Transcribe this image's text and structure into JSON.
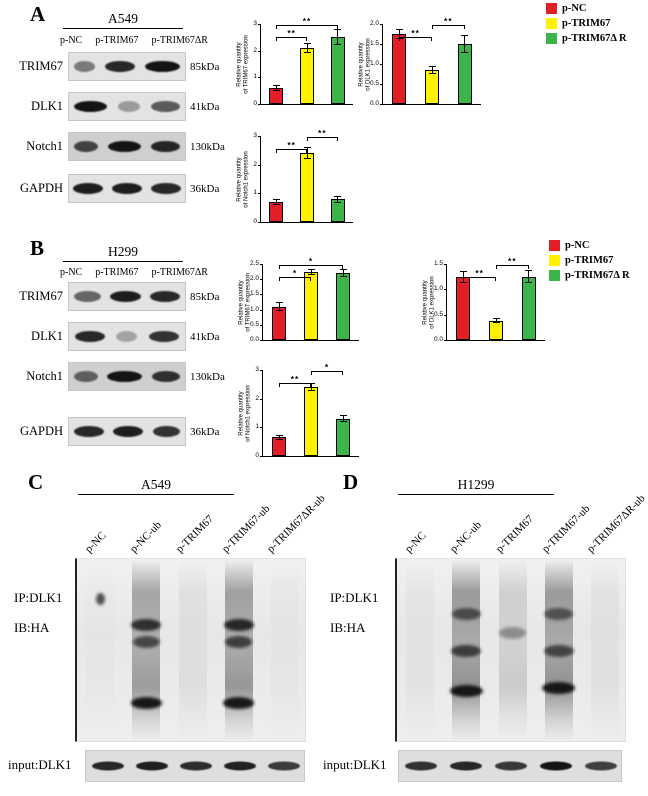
{
  "panels": {
    "A": {
      "label": "A",
      "cell_line": "A549",
      "lanes": [
        "p-NC",
        "p-TRIM67",
        "p-TRIM67ΔR"
      ],
      "rows": [
        {
          "protein": "TRIM67",
          "mw": "85kDa",
          "bands": [
            0.5,
            0.9,
            1.0
          ],
          "widths": [
            0.7,
            1.0,
            1.15
          ]
        },
        {
          "protein": "DLK1",
          "mw": "41kDa",
          "bands": [
            1.0,
            0.35,
            0.65
          ],
          "widths": [
            1.1,
            0.75,
            0.95
          ]
        },
        {
          "protein": "Notch1",
          "mw": "130kDa",
          "bands": [
            0.75,
            1.0,
            0.9
          ],
          "widths": [
            0.8,
            1.1,
            0.95
          ],
          "noisy": true
        },
        {
          "protein": "GAPDH",
          "mw": "36kDa",
          "bands": [
            0.95,
            0.95,
            0.9
          ],
          "widths": [
            1.0,
            1.0,
            1.0
          ]
        }
      ]
    },
    "B": {
      "label": "B",
      "cell_line": "H299",
      "lanes": [
        "p-NC",
        "p-TRIM67",
        "p-TRIM67ΔR"
      ],
      "rows": [
        {
          "protein": "TRIM67",
          "mw": "85kDa",
          "bands": [
            0.6,
            0.95,
            0.9
          ],
          "widths": [
            0.9,
            1.05,
            1.0
          ]
        },
        {
          "protein": "DLK1",
          "mw": "41kDa",
          "bands": [
            0.9,
            0.3,
            0.85
          ],
          "widths": [
            1.0,
            0.7,
            1.0
          ]
        },
        {
          "protein": "Notch1",
          "mw": "130kDa",
          "bands": [
            0.6,
            1.0,
            0.85
          ],
          "widths": [
            0.8,
            1.15,
            0.95
          ],
          "noisy": true
        },
        {
          "protein": "GAPDH",
          "mw": "36kDa",
          "bands": [
            0.9,
            0.95,
            0.85
          ],
          "widths": [
            1.0,
            1.0,
            0.9
          ]
        }
      ]
    },
    "C": {
      "label": "C",
      "cell_line": "A549",
      "ip_label": "IP:DLK1",
      "ib_label": "IB:HA",
      "input_label": "input:DLK1",
      "lanes": [
        "p-NC",
        "p-NC-ub",
        "p-TRIM67",
        "p-TRIM67-ub",
        "p-TRIM67ΔR-ub"
      ],
      "smears": [
        0.03,
        0.75,
        0.12,
        0.8,
        0.05
      ],
      "blobs": [
        [
          [
            0.22,
            0.7,
            0.3
          ]
        ],
        [
          [
            0.36,
            0.8,
            1.0
          ],
          [
            0.45,
            0.65,
            0.9
          ],
          [
            0.78,
            0.95,
            1.05
          ]
        ],
        [],
        [
          [
            0.36,
            0.85,
            1.0
          ],
          [
            0.45,
            0.7,
            0.9
          ],
          [
            0.78,
            0.95,
            1.05
          ]
        ],
        []
      ],
      "input_bands": [
        0.9,
        0.95,
        0.88,
        0.92,
        0.8
      ]
    },
    "D": {
      "label": "D",
      "cell_line": "H1299",
      "ip_label": "IP:DLK1",
      "ib_label": "IB:HA",
      "input_label": "input:DLK1",
      "lanes": [
        "p-NC",
        "p-NC-ub",
        "p-TRIM67",
        "p-TRIM67-ub",
        "p-TRIM67ΔR-ub"
      ],
      "smears": [
        0.08,
        0.85,
        0.3,
        0.85,
        0.1
      ],
      "blobs": [
        [],
        [
          [
            0.3,
            0.6,
            0.95
          ],
          [
            0.5,
            0.7,
            1.0
          ],
          [
            0.72,
            0.95,
            1.1
          ]
        ],
        [
          [
            0.4,
            0.35,
            0.9
          ]
        ],
        [
          [
            0.3,
            0.55,
            0.95
          ],
          [
            0.5,
            0.65,
            1.0
          ],
          [
            0.7,
            0.95,
            1.1
          ]
        ],
        []
      ],
      "input_bands": [
        0.85,
        0.9,
        0.82,
        1.0,
        0.78
      ]
    }
  },
  "legend": {
    "items": [
      {
        "label": "p-NC",
        "color": "#E21E26"
      },
      {
        "label": "p-TRIM67",
        "color": "#FFF100"
      },
      {
        "label": "p-TRIM67Δ R",
        "color": "#3BB54A"
      }
    ]
  },
  "chart_data": [
    {
      "id": "A-TRIM67",
      "type": "bar",
      "categories": [
        "p-NC",
        "p-TRIM67",
        "p-TRIM67ΔR"
      ],
      "values": [
        0.6,
        2.1,
        2.5
      ],
      "errors": [
        0.12,
        0.2,
        0.3
      ],
      "title": "",
      "xlabel": "",
      "ylabel": "Relative quantity\nof TRIM67 expression",
      "ylim": [
        0,
        3
      ],
      "yticks": [
        0,
        1,
        2,
        3
      ],
      "ytick_labels": [
        "0",
        "1",
        "2",
        "3"
      ],
      "significance": [
        {
          "from": 0,
          "to": 1,
          "label": "**"
        },
        {
          "from": 0,
          "to": 2,
          "label": "**"
        }
      ]
    },
    {
      "id": "A-DLK1",
      "type": "bar",
      "categories": [
        "p-NC",
        "p-TRIM67",
        "p-TRIM67ΔR"
      ],
      "values": [
        1.75,
        0.85,
        1.5
      ],
      "errors": [
        0.12,
        0.1,
        0.22
      ],
      "title": "",
      "xlabel": "",
      "ylabel": "Relative quantity\nof DLK1 expression",
      "ylim": [
        0,
        2
      ],
      "yticks": [
        0,
        0.5,
        1,
        1.5,
        2
      ],
      "ytick_labels": [
        "0.0",
        "0.5",
        "1.0",
        "1.5",
        "2.0"
      ],
      "significance": [
        {
          "from": 0,
          "to": 1,
          "label": "**"
        },
        {
          "from": 1,
          "to": 2,
          "label": "**"
        }
      ]
    },
    {
      "id": "A-Notch1",
      "type": "bar",
      "categories": [
        "p-NC",
        "p-TRIM67",
        "p-TRIM67ΔR"
      ],
      "values": [
        0.7,
        2.4,
        0.8
      ],
      "errors": [
        0.1,
        0.2,
        0.12
      ],
      "title": "",
      "xlabel": "",
      "ylabel": "Relative quantity\nof Notch1 expression",
      "ylim": [
        0,
        3
      ],
      "yticks": [
        0,
        1,
        2,
        3
      ],
      "ytick_labels": [
        "0",
        "1",
        "2",
        "3"
      ],
      "significance": [
        {
          "from": 0,
          "to": 1,
          "label": "**"
        },
        {
          "from": 1,
          "to": 2,
          "label": "**"
        }
      ]
    },
    {
      "id": "B-TRIM67",
      "type": "bar",
      "categories": [
        "p-NC",
        "p-TRIM67",
        "p-TRIM67ΔR"
      ],
      "values": [
        1.1,
        2.25,
        2.2
      ],
      "errors": [
        0.15,
        0.1,
        0.12
      ],
      "title": "",
      "xlabel": "",
      "ylabel": "Relative quantity\nof TRIM67 expression",
      "ylim": [
        0,
        2.5
      ],
      "yticks": [
        0,
        0.5,
        1,
        1.5,
        2,
        2.5
      ],
      "ytick_labels": [
        "0.0",
        "0.5",
        "1.0",
        "1.5",
        "2.0",
        "2.5"
      ],
      "significance": [
        {
          "from": 0,
          "to": 1,
          "label": "*"
        },
        {
          "from": 0,
          "to": 2,
          "label": "*"
        }
      ]
    },
    {
      "id": "B-DLK1",
      "type": "bar",
      "categories": [
        "p-NC",
        "p-TRIM67",
        "p-TRIM67ΔR"
      ],
      "values": [
        1.25,
        0.38,
        1.25
      ],
      "errors": [
        0.12,
        0.05,
        0.13
      ],
      "title": "",
      "xlabel": "",
      "ylabel": "Relative quantity\nof DLK1 expression",
      "ylim": [
        0,
        1.5
      ],
      "yticks": [
        0,
        0.5,
        1,
        1.5
      ],
      "ytick_labels": [
        "0.0",
        "0.5",
        "1.0",
        "1.5"
      ],
      "significance": [
        {
          "from": 0,
          "to": 1,
          "label": "**"
        },
        {
          "from": 1,
          "to": 2,
          "label": "**"
        }
      ]
    },
    {
      "id": "B-Notch1",
      "type": "bar",
      "categories": [
        "p-NC",
        "p-TRIM67",
        "p-TRIM67ΔR"
      ],
      "values": [
        0.65,
        2.4,
        1.3
      ],
      "errors": [
        0.08,
        0.15,
        0.12
      ],
      "title": "",
      "xlabel": "",
      "ylabel": "Relative quantity\nof Notch1 expression",
      "ylim": [
        0,
        3
      ],
      "yticks": [
        0,
        1,
        2,
        3
      ],
      "ytick_labels": [
        "0",
        "1",
        "2",
        "3"
      ],
      "significance": [
        {
          "from": 0,
          "to": 1,
          "label": "**"
        },
        {
          "from": 1,
          "to": 2,
          "label": "*"
        }
      ]
    }
  ]
}
